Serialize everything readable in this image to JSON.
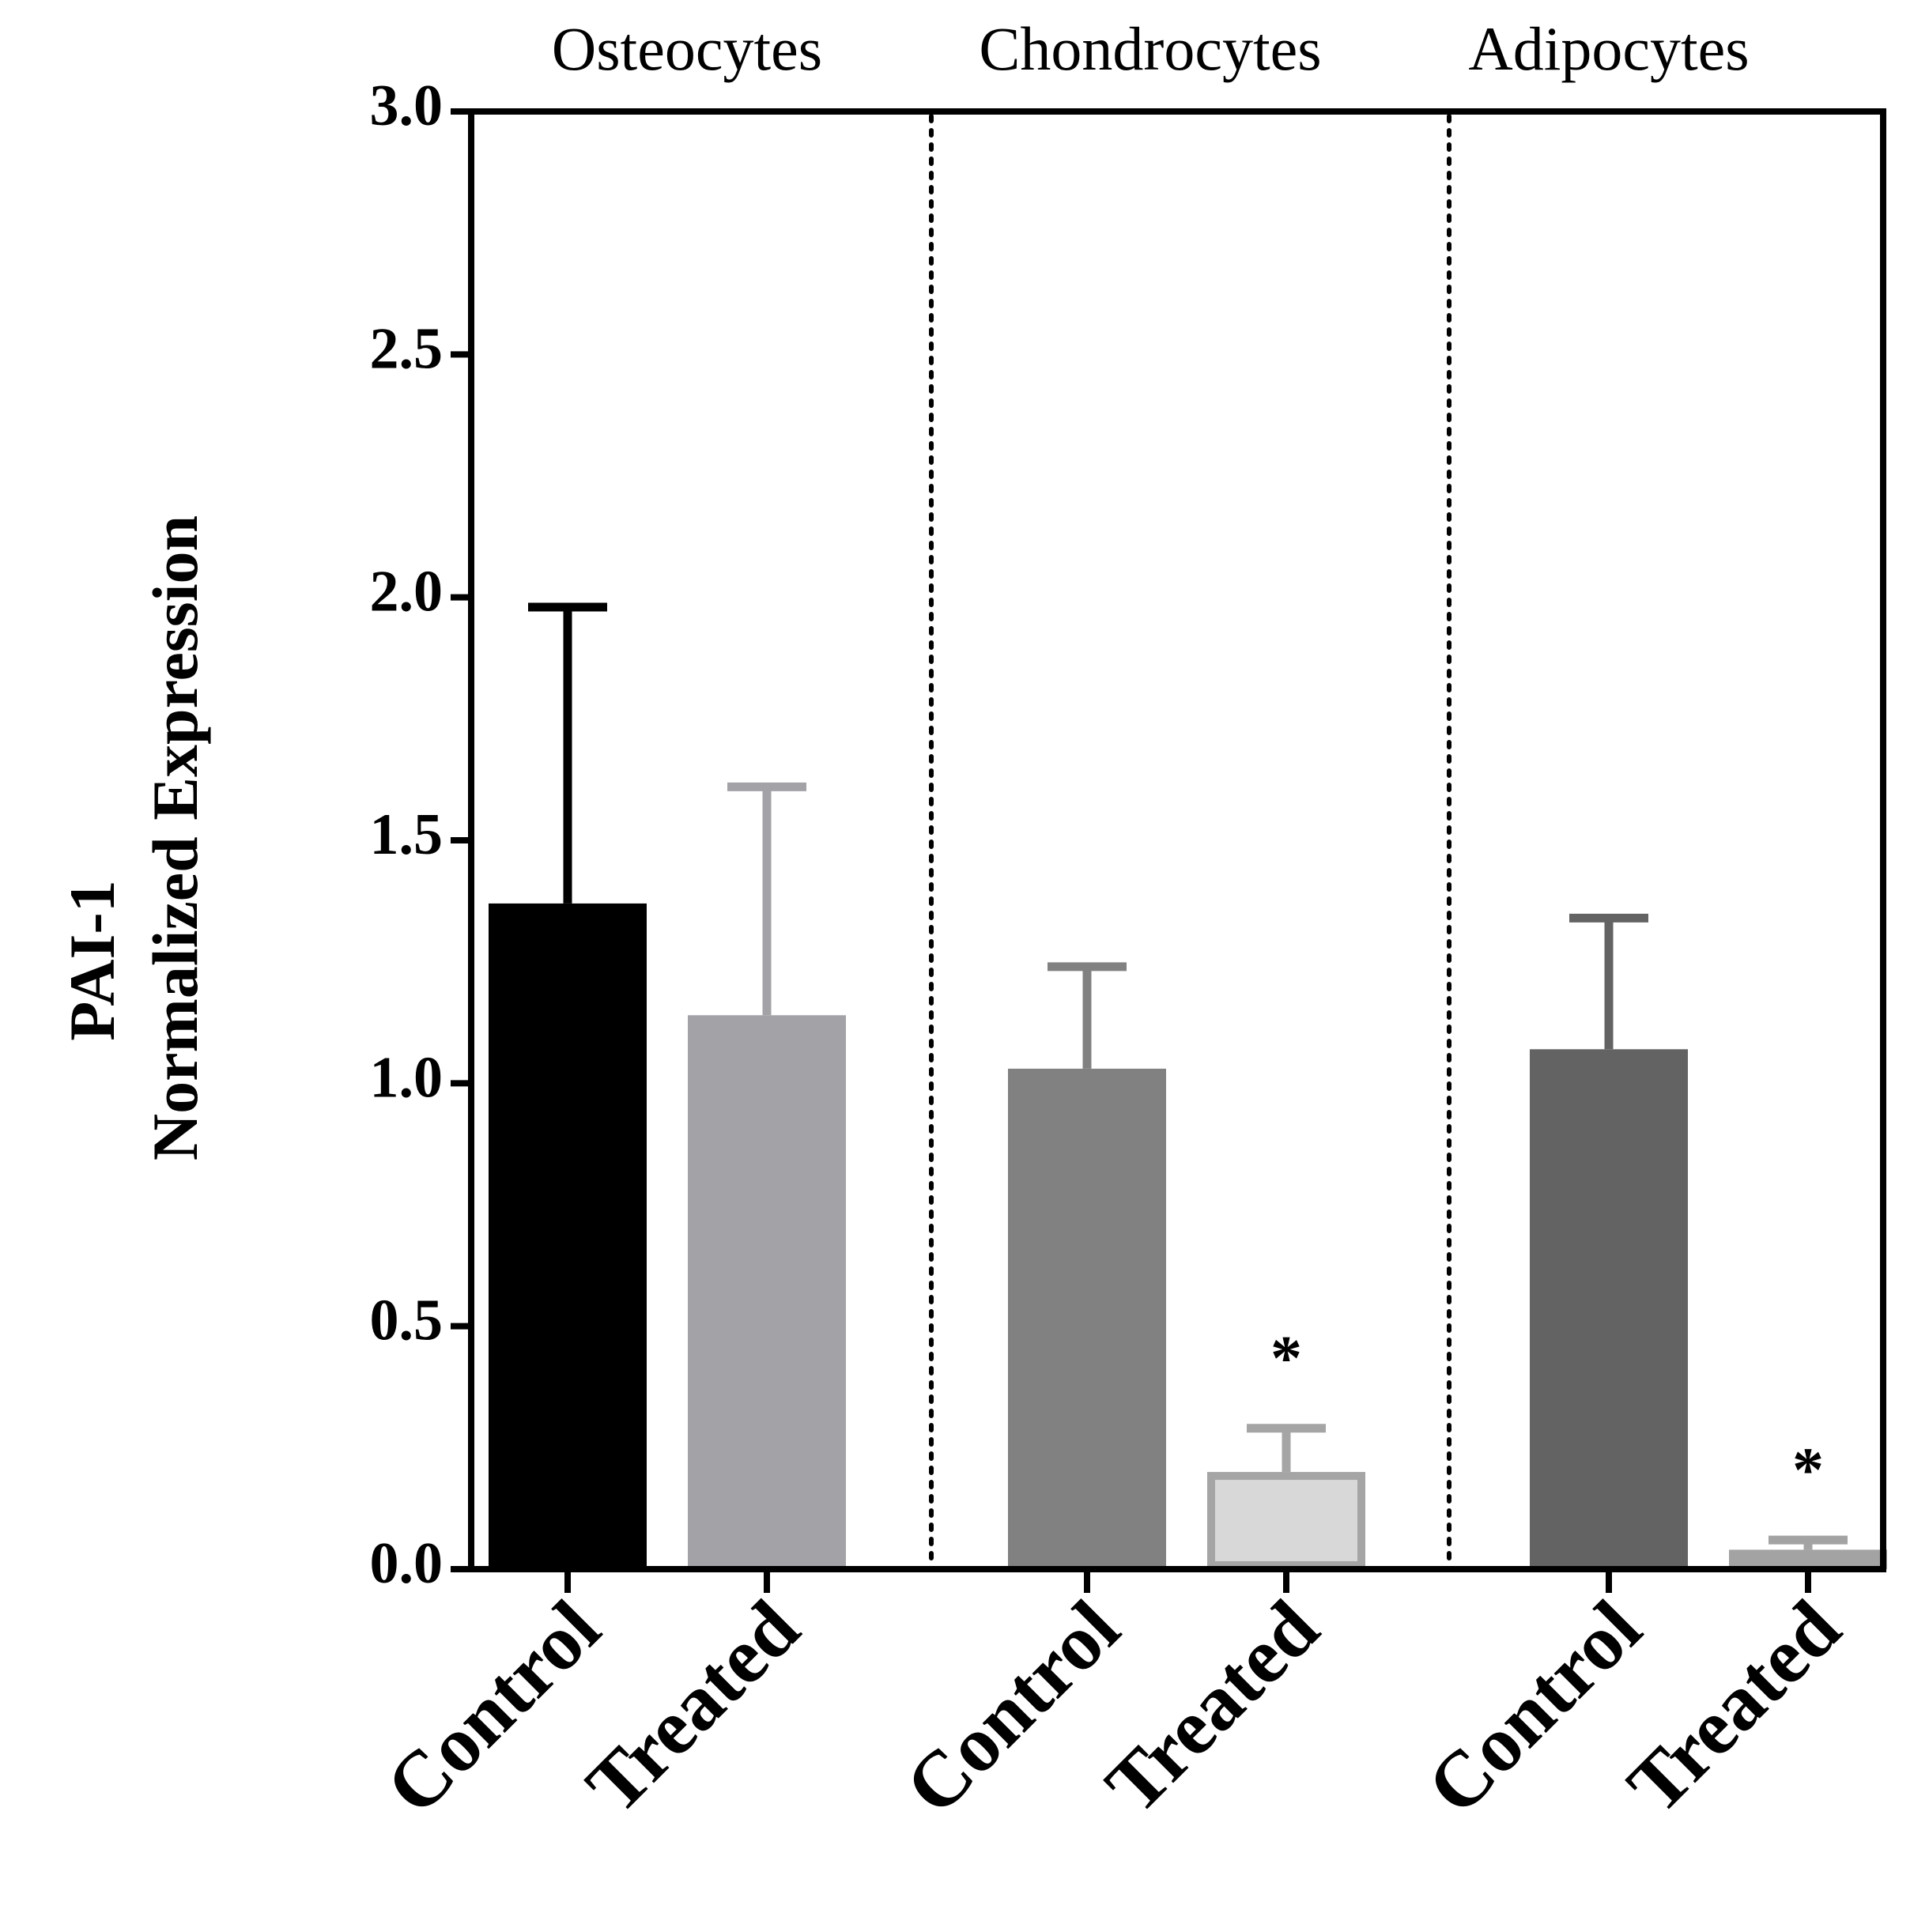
{
  "chart_data": {
    "type": "bar",
    "ylabel_line1": "PAI-1",
    "ylabel_line2": "Normalized Expression",
    "ylim": [
      0,
      3.0
    ],
    "yticks": [
      "0.0",
      "0.5",
      "1.0",
      "1.5",
      "2.0",
      "2.5",
      "3.0"
    ],
    "ytick_values": [
      0,
      0.5,
      1.0,
      1.5,
      2.0,
      2.5,
      3.0
    ],
    "groups": [
      {
        "name": "Osteocytes",
        "bars": [
          {
            "label": "Control",
            "value": 1.37,
            "error": 0.61,
            "fill": "#000000",
            "edge": "#000000",
            "errcolor": "#000000",
            "annotation": ""
          },
          {
            "label": "Treated",
            "value": 1.14,
            "error": 0.47,
            "fill": "#a3a3a7",
            "edge": "#a3a3a7",
            "errcolor": "#a3a3a7",
            "annotation": ""
          }
        ]
      },
      {
        "name": "Chondrocytes",
        "bars": [
          {
            "label": "Control",
            "value": 1.03,
            "error": 0.21,
            "fill": "#818181",
            "edge": "#818181",
            "errcolor": "#818181",
            "annotation": ""
          },
          {
            "label": "Treated",
            "value": 0.2,
            "error": 0.09,
            "fill": "#d8d8d8",
            "edge": "#a5a5a5",
            "errcolor": "#a5a5a5",
            "annotation": "*"
          }
        ]
      },
      {
        "name": "Adipocytes",
        "bars": [
          {
            "label": "Control",
            "value": 1.07,
            "error": 0.27,
            "fill": "#636363",
            "edge": "#636363",
            "errcolor": "#636363",
            "annotation": ""
          },
          {
            "label": "Treated",
            "value": 0.04,
            "error": 0.02,
            "fill": "#a3a3a3",
            "edge": "#a3a3a3",
            "errcolor": "#a3a3a3",
            "annotation": "*"
          }
        ]
      }
    ],
    "grid": false,
    "group_separators": "dotted"
  }
}
